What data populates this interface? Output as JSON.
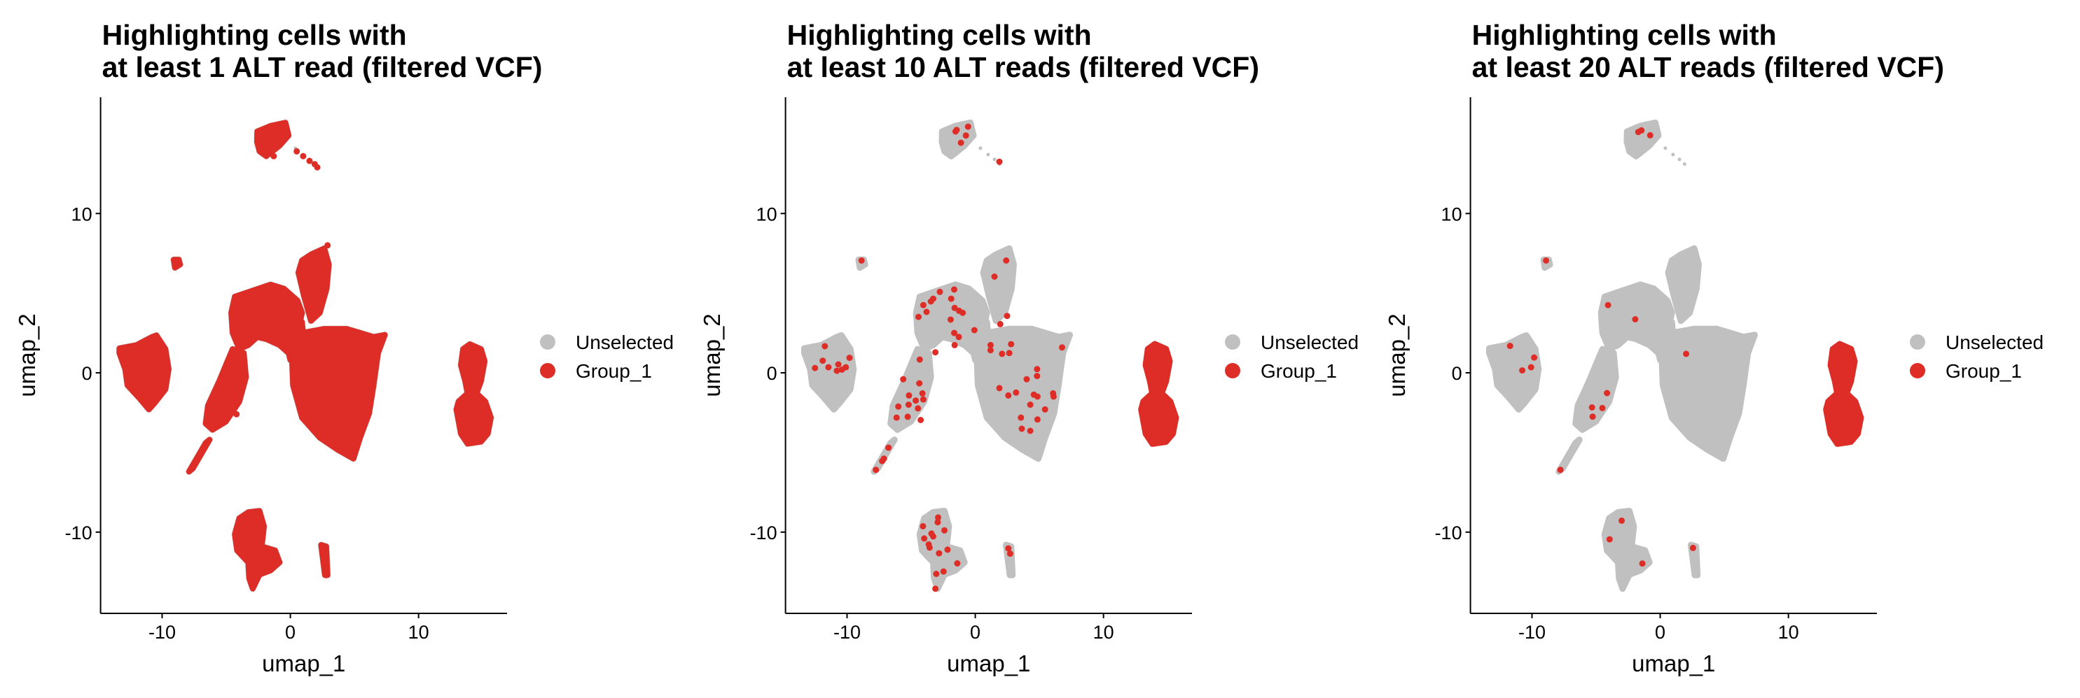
{
  "colors": {
    "unselected": "#C0C0C0",
    "group_1": "#DE2D26",
    "axis": "#000000"
  },
  "clusters": [
    {
      "name": "top",
      "polygon": [
        [
          -2.58,
          15.15
        ],
        [
          -1.54,
          15.5
        ],
        [
          -0.38,
          15.7
        ],
        [
          -0.14,
          14.9
        ],
        [
          -0.84,
          14.26
        ],
        [
          -1.88,
          13.6
        ],
        [
          -2.4,
          13.9
        ],
        [
          -2.6,
          14.5
        ]
      ]
    },
    {
      "name": "small-upper-left",
      "polygon": [
        [
          -9.1,
          7.1
        ],
        [
          -8.7,
          7.1
        ],
        [
          -8.6,
          6.8
        ],
        [
          -9.0,
          6.6
        ]
      ]
    },
    {
      "name": "left",
      "polygon": [
        [
          -13.33,
          1.54
        ],
        [
          -12.0,
          1.74
        ],
        [
          -10.79,
          2.25
        ],
        [
          -10.44,
          2.35
        ],
        [
          -9.74,
          1.49
        ],
        [
          -9.49,
          0.23
        ],
        [
          -9.74,
          -1.04
        ],
        [
          -10.61,
          -1.92
        ],
        [
          -11.03,
          -2.3
        ],
        [
          -11.83,
          -1.54
        ],
        [
          -12.7,
          -0.78
        ],
        [
          -12.88,
          0.23
        ],
        [
          -13.33,
          1.24
        ]
      ]
    },
    {
      "name": "upper-middle",
      "polygon": [
        [
          -4.61,
          3.77
        ],
        [
          -4.33,
          4.78
        ],
        [
          -2.93,
          5.16
        ],
        [
          -1.54,
          5.54
        ],
        [
          -0.49,
          5.28
        ],
        [
          0.56,
          4.53
        ],
        [
          0.91,
          3.77
        ],
        [
          0.56,
          2.5
        ],
        [
          -0.14,
          1.24
        ],
        [
          -0.84,
          1.74
        ],
        [
          -1.88,
          2.12
        ],
        [
          -2.58,
          2.25
        ],
        [
          -3.28,
          1.74
        ],
        [
          -3.98,
          1.49
        ],
        [
          -4.5,
          2.5
        ]
      ]
    },
    {
      "name": "left-arm",
      "polygon": [
        [
          -4.5,
          1.49
        ],
        [
          -3.63,
          1.24
        ],
        [
          -3.46,
          -0.28
        ],
        [
          -3.98,
          -1.8
        ],
        [
          -5.03,
          -3.06
        ],
        [
          -6.07,
          -3.57
        ],
        [
          -6.6,
          -3.19
        ],
        [
          -6.42,
          -2.05
        ],
        [
          -5.55,
          -0.53
        ],
        [
          -5.03,
          0.48
        ]
      ]
    },
    {
      "name": "arm-tail",
      "polygon": [
        [
          -6.3,
          -4.2
        ],
        [
          -6.6,
          -4.4
        ],
        [
          -7.9,
          -6.2
        ],
        [
          -7.6,
          -6.0
        ]
      ]
    },
    {
      "name": "upper-stem",
      "polygon": [
        [
          0.91,
          7.05
        ],
        [
          1.61,
          7.43
        ],
        [
          2.65,
          7.81
        ],
        [
          3.0,
          6.8
        ],
        [
          2.83,
          5.28
        ],
        [
          2.3,
          3.77
        ],
        [
          1.61,
          3.26
        ],
        [
          1.08,
          4.78
        ],
        [
          0.63,
          6.3
        ]
      ]
    },
    {
      "name": "bridge",
      "polygon": [
        [
          -0.5,
          2.5
        ],
        [
          0.9,
          3.2
        ],
        [
          1.2,
          1.0
        ],
        [
          0.0,
          0.8
        ]
      ]
    },
    {
      "name": "big-right",
      "polygon": [
        [
          0.91,
          2.5
        ],
        [
          2.65,
          2.76
        ],
        [
          4.4,
          2.76
        ],
        [
          6.5,
          2.25
        ],
        [
          7.37,
          2.38
        ],
        [
          6.84,
          1.24
        ],
        [
          6.49,
          -0.78
        ],
        [
          6.14,
          -2.55
        ],
        [
          5.44,
          -4.07
        ],
        [
          4.92,
          -5.39
        ],
        [
          3.7,
          -4.83
        ],
        [
          2.3,
          -4.07
        ],
        [
          0.91,
          -2.81
        ],
        [
          0.21,
          -0.78
        ],
        [
          0.14,
          0.73
        ],
        [
          0.38,
          1.74
        ]
      ]
    },
    {
      "name": "bottom",
      "polygon": [
        [
          -3.98,
          -9.13
        ],
        [
          -3.28,
          -8.75
        ],
        [
          -2.41,
          -8.67
        ],
        [
          -2.06,
          -9.63
        ],
        [
          -2.23,
          -10.9
        ],
        [
          -1.19,
          -11.15
        ],
        [
          -0.84,
          -11.9
        ],
        [
          -1.54,
          -12.4
        ],
        [
          -2.41,
          -12.67
        ],
        [
          -2.93,
          -13.55
        ],
        [
          -3.21,
          -12.9
        ],
        [
          -3.28,
          -11.9
        ],
        [
          -4.15,
          -11.15
        ],
        [
          -4.33,
          -10.14
        ]
      ]
    },
    {
      "name": "bottom-small",
      "polygon": [
        [
          2.4,
          -10.8
        ],
        [
          2.8,
          -10.9
        ],
        [
          2.9,
          -12.7
        ],
        [
          2.7,
          -12.7
        ]
      ]
    },
    {
      "name": "far-right",
      "polygon": [
        [
          13.47,
          1.49
        ],
        [
          14.0,
          1.8
        ],
        [
          14.87,
          1.49
        ],
        [
          15.15,
          0.73
        ],
        [
          14.87,
          -0.53
        ],
        [
          14.52,
          -1.29
        ],
        [
          15.2,
          -1.8
        ],
        [
          15.64,
          -2.81
        ],
        [
          15.4,
          -3.82
        ],
        [
          14.87,
          -4.32
        ],
        [
          13.82,
          -4.45
        ],
        [
          13.3,
          -3.82
        ],
        [
          12.95,
          -2.3
        ],
        [
          13.12,
          -1.8
        ],
        [
          13.82,
          -1.29
        ],
        [
          13.64,
          -0.53
        ],
        [
          13.3,
          0.48
        ]
      ]
    }
  ],
  "chart_data": [
    {
      "type": "scatter",
      "title": [
        "Highlighting cells with",
        "at least 1 ALT read (filtered VCF)"
      ],
      "xlabel": "umap_1",
      "ylabel": "umap_2",
      "xlim": [
        -14.8,
        16.9
      ],
      "ylim": [
        -15.1,
        17.3
      ],
      "xticks": [
        -10,
        0,
        10
      ],
      "yticks": [
        -10,
        0,
        10
      ],
      "grid": false,
      "legend_position": "right",
      "legend": [
        "Unselected",
        "Group_1"
      ],
      "group_1": {
        "clusters": [
          "top",
          "small-upper-left",
          "left",
          "upper-middle",
          "left-arm",
          "arm-tail",
          "upper-stem",
          "bridge",
          "big-right",
          "bottom",
          "bottom-small",
          "far-right"
        ],
        "points": [
          [
            0.5,
            13.9
          ],
          [
            1.0,
            13.6
          ],
          [
            1.5,
            13.3
          ],
          [
            1.9,
            13.1
          ],
          [
            2.1,
            12.9
          ],
          [
            -1.3,
            13.6
          ],
          [
            2.9,
            8.0
          ],
          [
            2.6,
            -11.0
          ],
          [
            2.8,
            -11.6
          ],
          [
            2.8,
            -12.7
          ],
          [
            -4.5,
            3.6
          ],
          [
            -4.2,
            -2.6
          ],
          [
            -7.8,
            -6.1
          ],
          [
            7.2,
            2.3
          ]
        ]
      }
    },
    {
      "type": "scatter",
      "title": [
        "Highlighting cells with",
        "at least 10 ALT reads (filtered VCF)"
      ],
      "xlabel": "umap_1",
      "ylabel": "umap_2",
      "xlim": [
        -14.8,
        16.9
      ],
      "ylim": [
        -15.1,
        17.3
      ],
      "xticks": [
        -10,
        0,
        10
      ],
      "yticks": [
        -10,
        0,
        10
      ],
      "grid": false,
      "legend_position": "right",
      "legend": [
        "Unselected",
        "Group_1"
      ],
      "group_1": {
        "clusters": [
          "far-right"
        ],
        "points": [
          [
            -0.56,
            15.45
          ],
          [
            -1.54,
            15.15
          ],
          [
            -1.45,
            15.25
          ],
          [
            -0.73,
            14.9
          ],
          [
            -1.12,
            14.44
          ],
          [
            1.88,
            13.25
          ],
          [
            -8.87,
            7.05
          ],
          [
            2.41,
            7.05
          ],
          [
            1.5,
            6.04
          ],
          [
            -2.76,
            5.08
          ],
          [
            -1.64,
            5.23
          ],
          [
            -1.88,
            4.65
          ],
          [
            -3.28,
            4.65
          ],
          [
            -3.46,
            4.48
          ],
          [
            -4.05,
            4.25
          ],
          [
            -3.8,
            3.82
          ],
          [
            -4.43,
            3.51
          ],
          [
            -1.61,
            4.07
          ],
          [
            -1.26,
            3.89
          ],
          [
            -0.98,
            3.77
          ],
          [
            -1.92,
            3.34
          ],
          [
            2.48,
            3.57
          ],
          [
            1.95,
            3.06
          ],
          [
            -0.07,
            2.68
          ],
          [
            -1.64,
            2.5
          ],
          [
            -1.29,
            2.25
          ],
          [
            -1.61,
            1.74
          ],
          [
            -3.11,
            1.29
          ],
          [
            1.19,
            1.74
          ],
          [
            1.19,
            1.42
          ],
          [
            2.09,
            1.19
          ],
          [
            2.65,
            1.24
          ],
          [
            2.79,
            1.8
          ],
          [
            6.77,
            1.59
          ],
          [
            -11.73,
            1.67
          ],
          [
            -11.9,
            0.76
          ],
          [
            -11.45,
            0.35
          ],
          [
            -12.5,
            0.3
          ],
          [
            -10.68,
            0.53
          ],
          [
            -10.09,
            0.35
          ],
          [
            -9.81,
            0.94
          ],
          [
            -10.79,
            0.13
          ],
          [
            -10.4,
            0.2
          ],
          [
            -4.33,
            0.83
          ],
          [
            -5.62,
            -0.4
          ],
          [
            -4.36,
            -0.66
          ],
          [
            -5.17,
            -1.42
          ],
          [
            -4.12,
            -1.29
          ],
          [
            -4.05,
            -1.67
          ],
          [
            -4.64,
            -1.74
          ],
          [
            -5.2,
            -2.0
          ],
          [
            -6.0,
            -2.12
          ],
          [
            -4.47,
            -2.23
          ],
          [
            -6.14,
            -2.81
          ],
          [
            -5.27,
            -2.76
          ],
          [
            -4.26,
            -2.96
          ],
          [
            -6.77,
            -4.7
          ],
          [
            -7.12,
            -5.39
          ],
          [
            -7.26,
            -5.54
          ],
          [
            -7.75,
            -6.09
          ],
          [
            4.82,
            0.23
          ],
          [
            4.82,
            -0.2
          ],
          [
            4.01,
            -0.4
          ],
          [
            1.88,
            -0.96
          ],
          [
            2.58,
            -1.42
          ],
          [
            3.18,
            -1.24
          ],
          [
            4.57,
            -1.37
          ],
          [
            4.85,
            -1.49
          ],
          [
            6.07,
            -1.29
          ],
          [
            6.11,
            -1.49
          ],
          [
            4.29,
            -2.0
          ],
          [
            5.44,
            -2.3
          ],
          [
            3.56,
            -2.81
          ],
          [
            4.85,
            -2.93
          ],
          [
            3.63,
            -3.51
          ],
          [
            4.29,
            -3.64
          ],
          [
            -2.9,
            -9.08
          ],
          [
            -2.93,
            -9.38
          ],
          [
            -4.08,
            -9.63
          ],
          [
            -3.42,
            -10.09
          ],
          [
            -3.28,
            -10.27
          ],
          [
            -2.41,
            -9.89
          ],
          [
            -3.98,
            -10.4
          ],
          [
            -3.63,
            -10.77
          ],
          [
            -3.56,
            -10.97
          ],
          [
            -2.16,
            -11.1
          ],
          [
            -2.83,
            -11.33
          ],
          [
            -1.4,
            -11.96
          ],
          [
            -2.48,
            -12.47
          ],
          [
            -3.04,
            -12.62
          ],
          [
            -3.11,
            -13.55
          ],
          [
            2.58,
            -11.02
          ],
          [
            2.72,
            -11.35
          ]
        ]
      }
    },
    {
      "type": "scatter",
      "title": [
        "Highlighting cells with",
        "at least 20 ALT reads (filtered VCF)"
      ],
      "xlabel": "umap_1",
      "ylabel": "umap_2",
      "xlim": [
        -14.8,
        16.9
      ],
      "ylim": [
        -15.1,
        17.3
      ],
      "xticks": [
        -10,
        0,
        10
      ],
      "yticks": [
        -10,
        0,
        10
      ],
      "grid": false,
      "legend_position": "right",
      "legend": [
        "Unselected",
        "Group_1"
      ],
      "group_1": {
        "clusters": [
          "far-right"
        ],
        "points": [
          [
            -1.71,
            15.12
          ],
          [
            -1.46,
            15.22
          ],
          [
            -0.78,
            14.91
          ],
          [
            -8.9,
            7.05
          ],
          [
            -4.07,
            4.25
          ],
          [
            -1.95,
            3.36
          ],
          [
            2.02,
            1.19
          ],
          [
            -11.71,
            1.69
          ],
          [
            -9.83,
            0.96
          ],
          [
            -10.07,
            0.35
          ],
          [
            -10.76,
            0.15
          ],
          [
            -4.15,
            -1.27
          ],
          [
            -5.32,
            -2.17
          ],
          [
            -4.51,
            -2.21
          ],
          [
            -5.27,
            -2.75
          ],
          [
            -7.78,
            -6.09
          ],
          [
            -3.0,
            -9.28
          ],
          [
            -3.95,
            -10.45
          ],
          [
            -1.39,
            -11.97
          ],
          [
            2.56,
            -10.99
          ]
        ]
      }
    }
  ]
}
